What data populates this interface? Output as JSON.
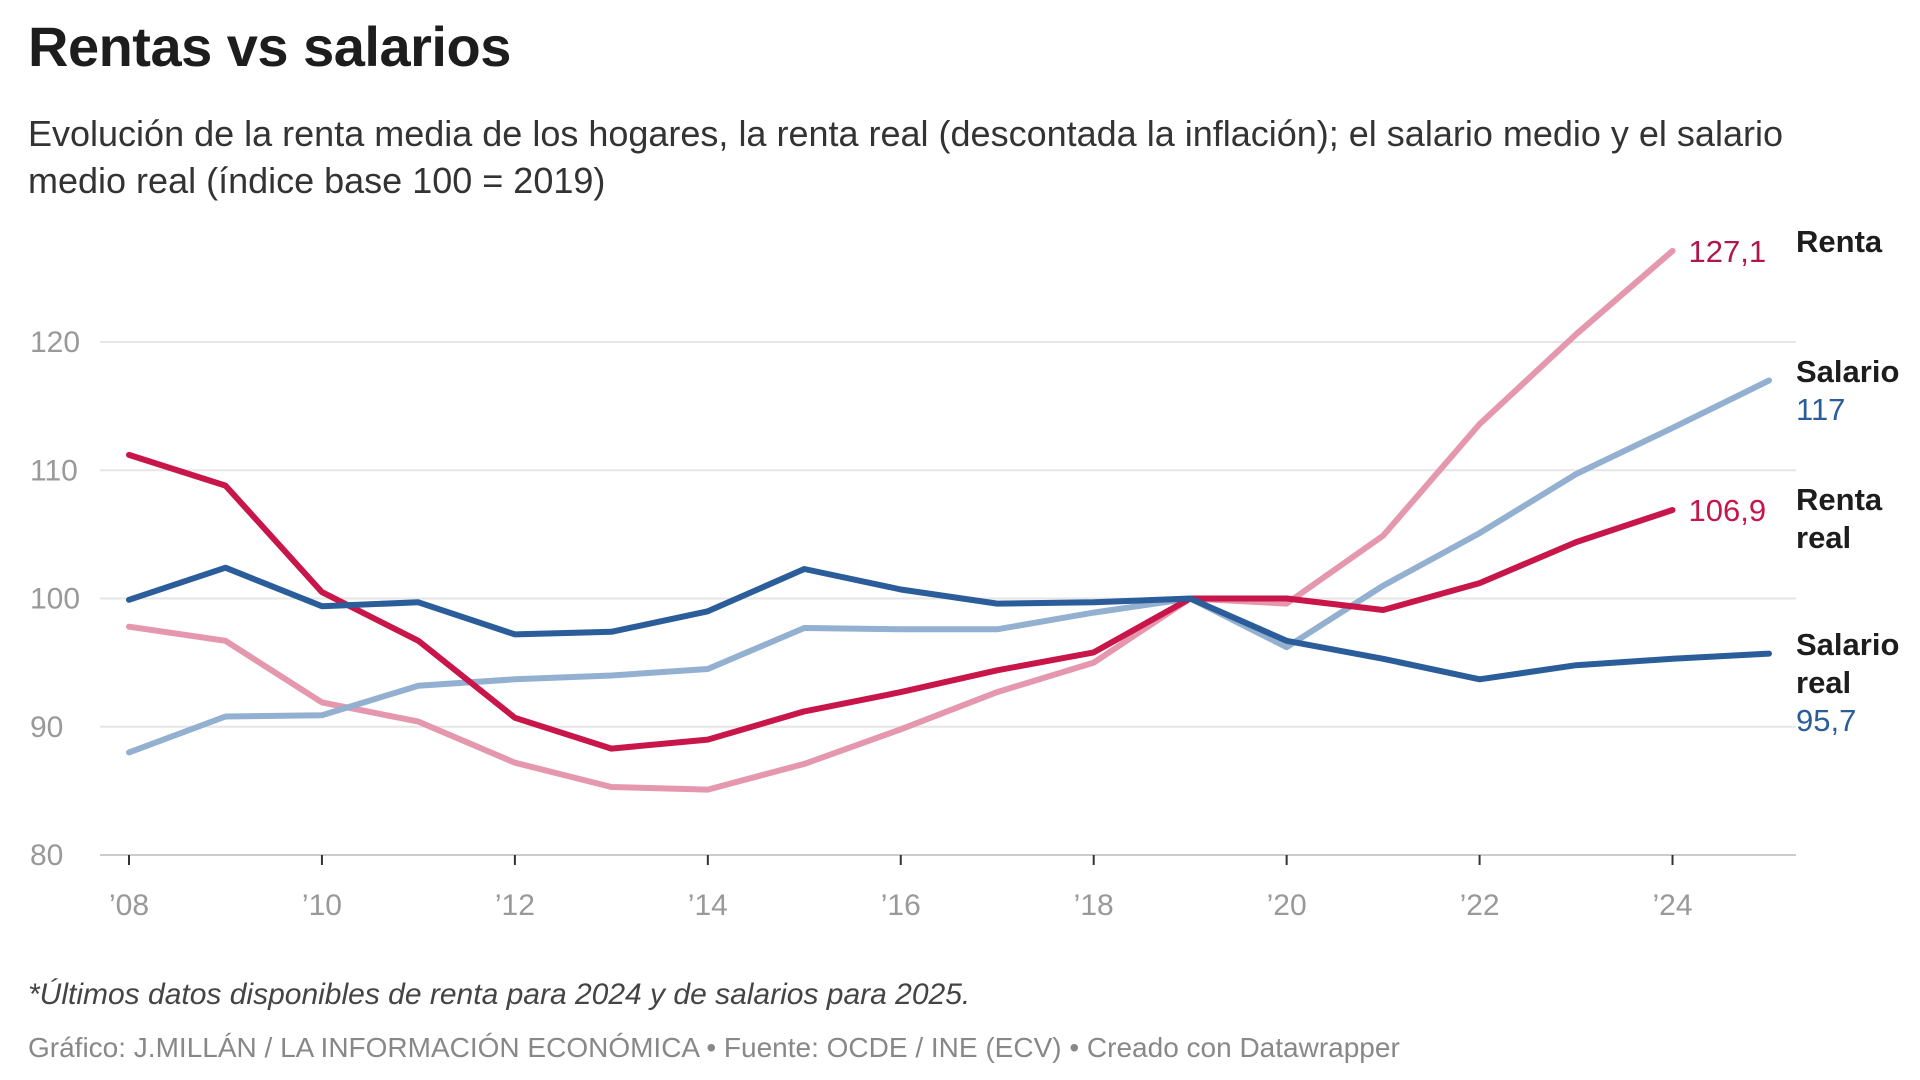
{
  "title": "Rentas vs salarios",
  "subtitle": "Evolución de la renta media de los hogares, la renta real (descontada la inflación); el salario medio y el salario medio real (índice base 100 = 2019)",
  "note": "*Últimos datos disponibles de renta para 2024 y de salarios para 2025.",
  "source": "Gráfico: J.MILLÁN / LA INFORMACIÓN ECONÓMICA • Fuente: OCDE / INE (ECV) • Creado con Datawrapper",
  "chart_data": {
    "type": "line",
    "ylim": [
      80,
      127.1
    ],
    "yticks": [
      80,
      90,
      100,
      110,
      120
    ],
    "xticks": [
      2008,
      2010,
      2012,
      2014,
      2016,
      2018,
      2020,
      2022,
      2024
    ],
    "xtick_labels": [
      "’08",
      "’10",
      "’12",
      "’14",
      "’16",
      "’18",
      "’20",
      "’22",
      "’24"
    ],
    "grid": true,
    "series": [
      {
        "name": "Renta",
        "label_lines": [
          "Renta"
        ],
        "end_label": "127,1",
        "color": "#e597ae",
        "label_color": "#b0164a",
        "x": [
          2008,
          2009,
          2010,
          2011,
          2012,
          2013,
          2014,
          2015,
          2016,
          2017,
          2018,
          2019,
          2020,
          2021,
          2022,
          2023,
          2024
        ],
        "values": [
          97.8,
          96.7,
          91.9,
          90.4,
          87.2,
          85.3,
          85.1,
          87.1,
          89.8,
          92.7,
          95.0,
          100,
          99.6,
          104.9,
          113.6,
          120.6,
          127.1
        ]
      },
      {
        "name": "Salario",
        "label_lines": [
          "Salario"
        ],
        "end_label": "117",
        "color": "#93b0d0",
        "label_color": "#2a5d9a",
        "x": [
          2008,
          2009,
          2010,
          2011,
          2012,
          2013,
          2014,
          2015,
          2016,
          2017,
          2018,
          2019,
          2020,
          2021,
          2022,
          2023,
          2024,
          2025
        ],
        "values": [
          88.0,
          90.8,
          90.9,
          93.2,
          93.7,
          94.0,
          94.5,
          97.7,
          97.6,
          97.6,
          98.9,
          100,
          96.2,
          101.0,
          105.1,
          109.7,
          113.3,
          117
        ]
      },
      {
        "name": "Renta real",
        "label_lines": [
          "Renta",
          "real"
        ],
        "end_label": "106,9",
        "color": "#c8154a",
        "label_color": "#c8154a",
        "x": [
          2008,
          2009,
          2010,
          2011,
          2012,
          2013,
          2014,
          2015,
          2016,
          2017,
          2018,
          2019,
          2020,
          2021,
          2022,
          2023,
          2024
        ],
        "values": [
          111.2,
          108.8,
          100.5,
          96.7,
          90.7,
          88.3,
          89.0,
          91.2,
          92.7,
          94.4,
          95.8,
          100,
          100,
          99.1,
          101.2,
          104.4,
          106.9
        ]
      },
      {
        "name": "Salario real",
        "label_lines": [
          "Salario",
          "real"
        ],
        "end_label": "95,7",
        "color": "#2a5d9a",
        "label_color": "#2a5d9a",
        "x": [
          2008,
          2009,
          2010,
          2011,
          2012,
          2013,
          2014,
          2015,
          2016,
          2017,
          2018,
          2019,
          2020,
          2021,
          2022,
          2023,
          2024,
          2025
        ],
        "values": [
          99.9,
          102.4,
          99.4,
          99.7,
          97.2,
          97.4,
          99.0,
          102.3,
          100.7,
          99.6,
          99.7,
          100,
          96.7,
          95.3,
          93.7,
          94.8,
          95.3,
          95.7
        ]
      }
    ]
  }
}
